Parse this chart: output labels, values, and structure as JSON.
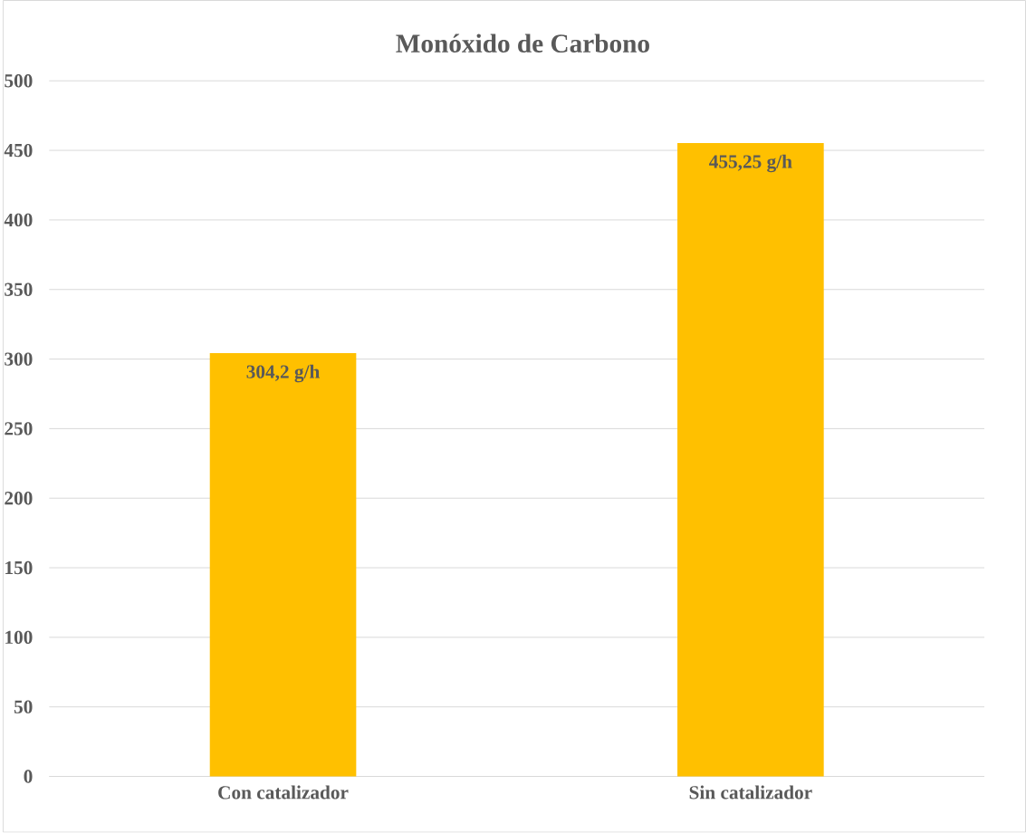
{
  "chart_data": {
    "type": "bar",
    "title": "Monóxido de Carbono",
    "categories": [
      "Con catalizador",
      "Sin catalizador"
    ],
    "values": [
      304.2,
      455.25
    ],
    "value_labels": [
      "304,2 g/h",
      "455,25 g/h"
    ],
    "color": "#ffc000",
    "ylim": [
      0,
      500
    ],
    "yticks": [
      0,
      50,
      100,
      150,
      200,
      250,
      300,
      350,
      400,
      450,
      500
    ],
    "grid": "y"
  }
}
